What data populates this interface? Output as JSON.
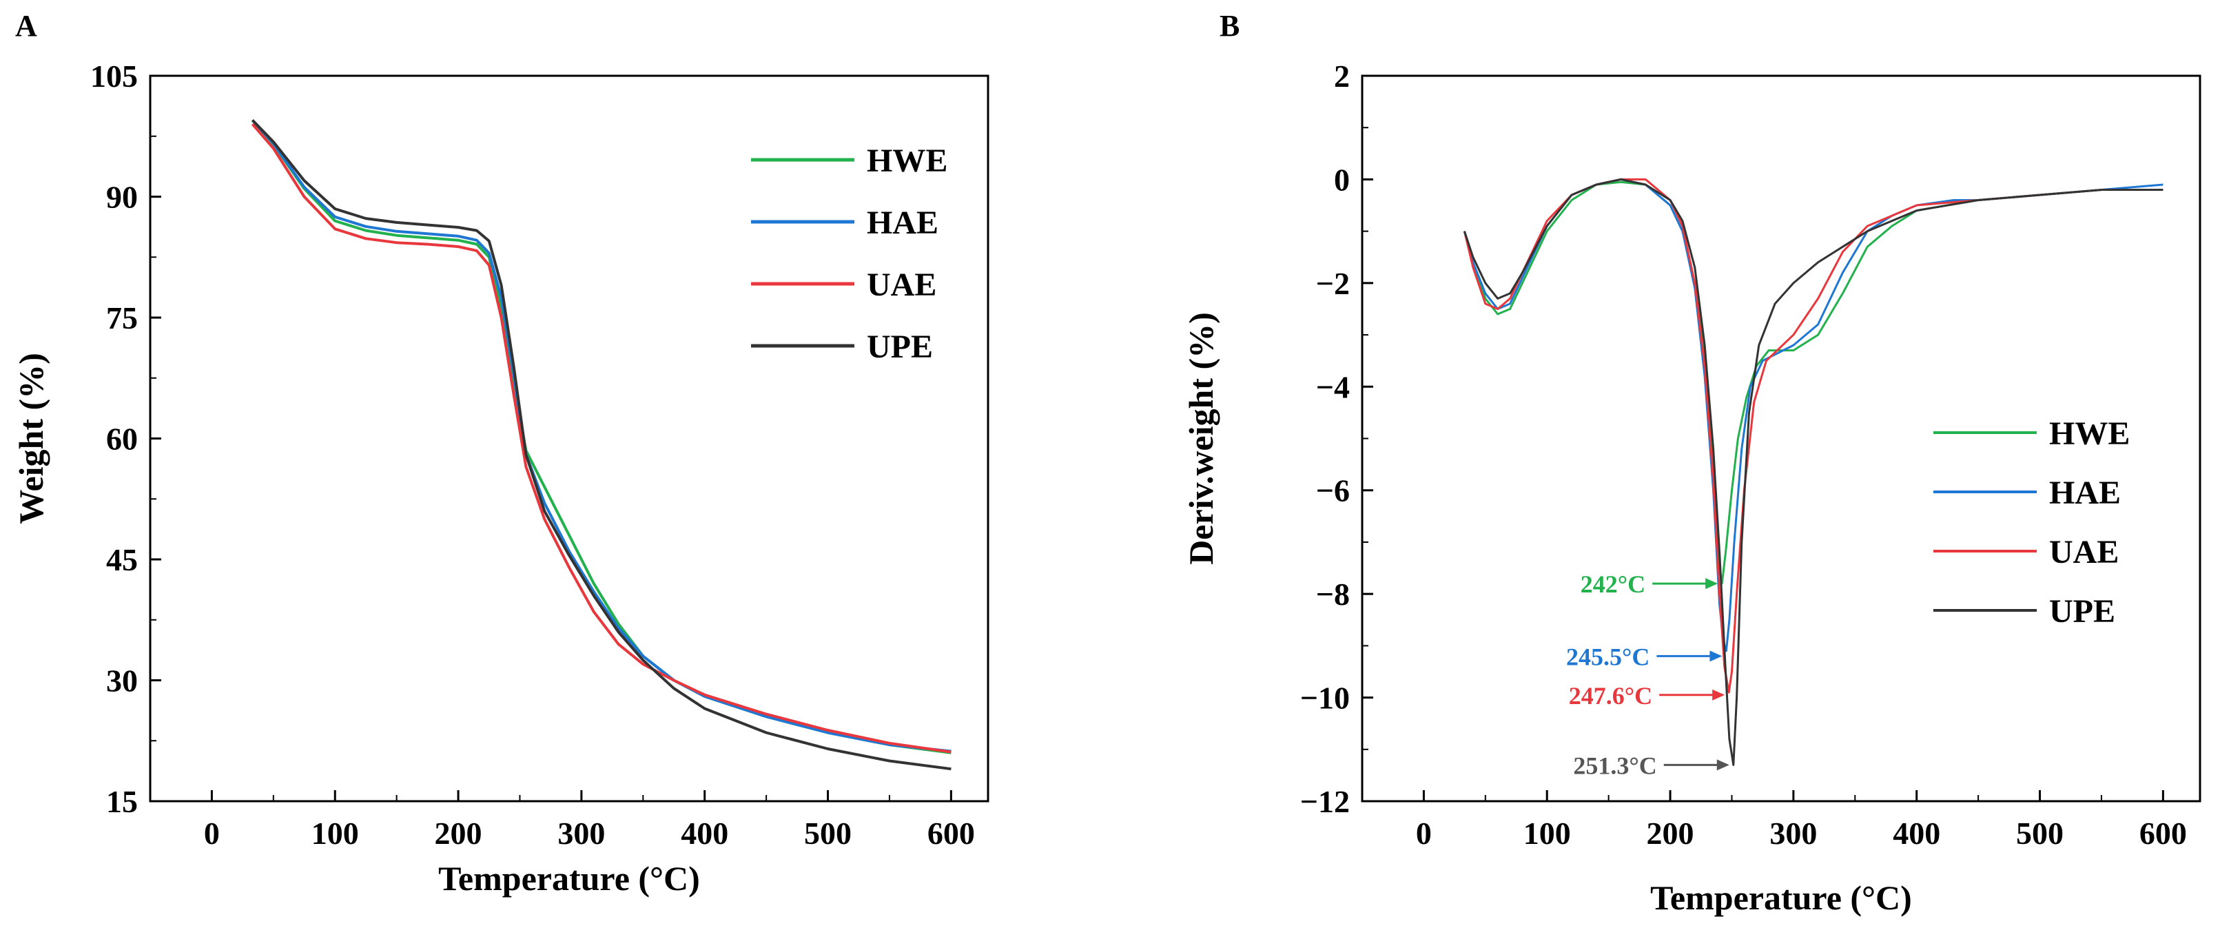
{
  "chart_data": [
    {
      "panel": "A",
      "type": "line",
      "title": "",
      "xlabel": "Temperature (°C)",
      "ylabel": "Weight (%)",
      "xlim": [
        -50,
        630
      ],
      "ylim": [
        15,
        105
      ],
      "xticks": [
        0,
        100,
        200,
        300,
        400,
        500,
        600
      ],
      "yticks": [
        15,
        30,
        45,
        60,
        75,
        90,
        105
      ],
      "legend": "top-right",
      "grid": false,
      "series": [
        {
          "name": "HWE",
          "color": "#22b14c",
          "x": [
            33,
            50,
            75,
            100,
            125,
            150,
            175,
            200,
            215,
            225,
            235,
            245,
            255,
            270,
            290,
            310,
            330,
            350,
            375,
            400,
            450,
            500,
            550,
            600
          ],
          "y": [
            99.5,
            96.5,
            91.0,
            87.0,
            85.8,
            85.2,
            84.9,
            84.6,
            84.1,
            82.5,
            76.0,
            67.0,
            58.5,
            54.0,
            48.0,
            42.0,
            37.0,
            33.0,
            30.0,
            28.0,
            25.5,
            23.5,
            22.0,
            21.0
          ]
        },
        {
          "name": "HAE",
          "color": "#1f77d4",
          "x": [
            33,
            50,
            75,
            100,
            125,
            150,
            175,
            200,
            215,
            225,
            235,
            245,
            255,
            270,
            290,
            310,
            330,
            350,
            375,
            400,
            450,
            500,
            550,
            600
          ],
          "y": [
            99.5,
            96.6,
            91.2,
            87.5,
            86.3,
            85.7,
            85.4,
            85.1,
            84.6,
            83.0,
            77.5,
            68.0,
            58.0,
            52.0,
            46.0,
            41.0,
            36.5,
            33.0,
            30.0,
            28.0,
            25.5,
            23.5,
            22.0,
            21.2
          ]
        },
        {
          "name": "UAE",
          "color": "#e8383d",
          "x": [
            33,
            50,
            75,
            100,
            125,
            150,
            175,
            200,
            215,
            225,
            235,
            245,
            255,
            270,
            290,
            310,
            330,
            350,
            375,
            400,
            450,
            500,
            550,
            600
          ],
          "y": [
            99.0,
            96.0,
            90.0,
            86.0,
            84.8,
            84.3,
            84.1,
            83.8,
            83.3,
            81.5,
            75.0,
            65.5,
            56.5,
            50.0,
            44.0,
            38.5,
            34.5,
            32.0,
            30.0,
            28.2,
            25.8,
            23.8,
            22.2,
            21.1
          ]
        },
        {
          "name": "UPE",
          "color": "#333333",
          "x": [
            33,
            50,
            75,
            100,
            125,
            150,
            175,
            200,
            215,
            225,
            235,
            245,
            255,
            270,
            290,
            310,
            330,
            350,
            375,
            400,
            450,
            500,
            550,
            600
          ],
          "y": [
            99.5,
            96.8,
            92.0,
            88.5,
            87.3,
            86.8,
            86.5,
            86.2,
            85.8,
            84.5,
            79.0,
            69.0,
            58.0,
            51.0,
            45.5,
            40.5,
            36.0,
            32.5,
            29.0,
            26.5,
            23.5,
            21.5,
            20.0,
            19.0
          ]
        }
      ]
    },
    {
      "panel": "B",
      "type": "line",
      "title": "",
      "xlabel": "Temperature (°C)",
      "ylabel": "Deriv.weight (%)",
      "xlim": [
        -50,
        630
      ],
      "ylim": [
        -12,
        2
      ],
      "xticks": [
        0,
        100,
        200,
        300,
        400,
        500,
        600
      ],
      "yticks": [
        -12,
        -10,
        -8,
        -6,
        -4,
        -2,
        0,
        2
      ],
      "legend": "center-right",
      "grid": false,
      "series": [
        {
          "name": "HWE",
          "color": "#22b14c",
          "x": [
            33,
            40,
            50,
            60,
            70,
            80,
            100,
            120,
            140,
            160,
            180,
            200,
            210,
            220,
            228,
            235,
            240,
            242,
            245,
            250,
            255,
            262,
            270,
            280,
            300,
            320,
            340,
            360,
            380,
            400,
            450,
            500,
            550,
            600
          ],
          "y": [
            -1.0,
            -1.6,
            -2.3,
            -2.6,
            -2.5,
            -2.0,
            -1.0,
            -0.4,
            -0.1,
            -0.05,
            -0.1,
            -0.5,
            -1.0,
            -2.0,
            -3.5,
            -5.5,
            -7.5,
            -7.8,
            -7.2,
            -6.0,
            -5.0,
            -4.2,
            -3.6,
            -3.3,
            -3.3,
            -3.0,
            -2.2,
            -1.3,
            -0.9,
            -0.6,
            -0.4,
            -0.3,
            -0.2,
            -0.2
          ]
        },
        {
          "name": "HAE",
          "color": "#1f77d4",
          "x": [
            33,
            40,
            50,
            60,
            70,
            80,
            100,
            120,
            140,
            160,
            180,
            200,
            210,
            220,
            228,
            235,
            240,
            243,
            245.5,
            248,
            252,
            258,
            265,
            275,
            300,
            320,
            340,
            360,
            380,
            400,
            430,
            450,
            500,
            550,
            600
          ],
          "y": [
            -1.0,
            -1.6,
            -2.2,
            -2.5,
            -2.4,
            -1.9,
            -0.9,
            -0.3,
            -0.1,
            0.0,
            -0.1,
            -0.5,
            -1.0,
            -2.1,
            -3.8,
            -6.0,
            -8.2,
            -8.9,
            -9.1,
            -8.5,
            -7.0,
            -5.2,
            -4.0,
            -3.5,
            -3.2,
            -2.8,
            -1.8,
            -1.0,
            -0.7,
            -0.5,
            -0.4,
            -0.4,
            -0.3,
            -0.2,
            -0.1
          ]
        },
        {
          "name": "UAE",
          "color": "#e8383d",
          "x": [
            33,
            40,
            50,
            60,
            70,
            80,
            100,
            120,
            140,
            160,
            180,
            200,
            210,
            220,
            228,
            235,
            240,
            244,
            247.6,
            250,
            254,
            260,
            268,
            278,
            300,
            320,
            340,
            360,
            380,
            400,
            450,
            500,
            550,
            600
          ],
          "y": [
            -1.0,
            -1.7,
            -2.4,
            -2.5,
            -2.3,
            -1.8,
            -0.8,
            -0.3,
            -0.1,
            0.0,
            0.0,
            -0.4,
            -0.9,
            -2.0,
            -3.6,
            -5.8,
            -8.0,
            -9.4,
            -9.9,
            -9.5,
            -8.0,
            -6.0,
            -4.3,
            -3.5,
            -3.0,
            -2.3,
            -1.4,
            -0.9,
            -0.7,
            -0.5,
            -0.4,
            -0.3,
            -0.2,
            -0.2
          ]
        },
        {
          "name": "UPE",
          "color": "#333333",
          "x": [
            33,
            40,
            50,
            60,
            70,
            80,
            100,
            120,
            140,
            160,
            180,
            200,
            210,
            220,
            228,
            235,
            240,
            245,
            248,
            251.3,
            254,
            258,
            264,
            272,
            285,
            300,
            320,
            340,
            360,
            380,
            400,
            450,
            500,
            550,
            600
          ],
          "y": [
            -1.0,
            -1.5,
            -2.0,
            -2.3,
            -2.2,
            -1.8,
            -0.9,
            -0.3,
            -0.1,
            0.0,
            -0.1,
            -0.4,
            -0.8,
            -1.7,
            -3.2,
            -5.2,
            -7.2,
            -9.5,
            -10.8,
            -11.3,
            -10.0,
            -7.0,
            -4.5,
            -3.2,
            -2.4,
            -2.0,
            -1.6,
            -1.3,
            -1.0,
            -0.8,
            -0.6,
            -0.4,
            -0.3,
            -0.2,
            -0.2
          ]
        }
      ],
      "annotations": [
        {
          "text": "242°C",
          "x": 242,
          "y": -7.8,
          "color": "#22b14c",
          "label_pos": "left"
        },
        {
          "text": "245.5°C",
          "x": 245.5,
          "y": -9.2,
          "color": "#1f77d4",
          "label_pos": "left"
        },
        {
          "text": "247.6°C",
          "x": 247.6,
          "y": -9.95,
          "color": "#e8383d",
          "label_pos": "left"
        },
        {
          "text": "251.3°C",
          "x": 251.3,
          "y": -11.3,
          "color": "#555555",
          "label_pos": "left"
        }
      ]
    }
  ]
}
